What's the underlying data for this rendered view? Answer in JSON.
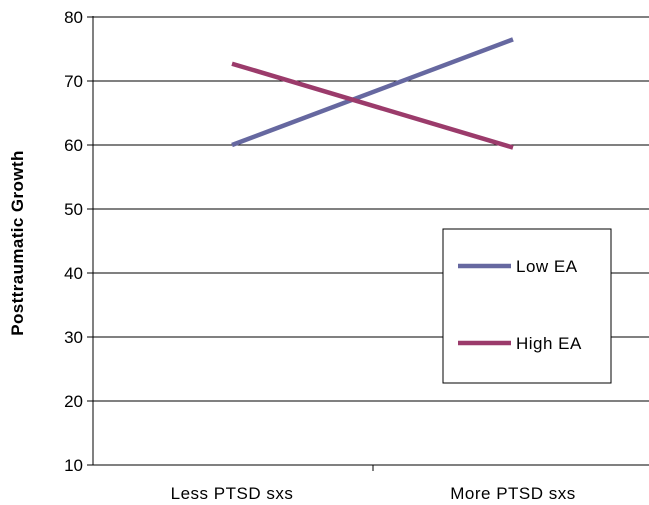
{
  "chart_data": {
    "type": "line",
    "title": "",
    "xlabel": "",
    "ylabel": "Posttraumatic Growth",
    "categories": [
      "Less PTSD sxs",
      "More PTSD sxs"
    ],
    "ylim": [
      10,
      80
    ],
    "yticks": [
      10,
      20,
      30,
      40,
      50,
      60,
      70,
      80
    ],
    "grid": true,
    "legend_position": "right",
    "series": [
      {
        "name": "Low EA",
        "values": [
          60,
          76.5
        ],
        "color": "#6668A0"
      },
      {
        "name": "High EA",
        "values": [
          72.7,
          59.6
        ],
        "color": "#9B3B6B"
      }
    ]
  }
}
